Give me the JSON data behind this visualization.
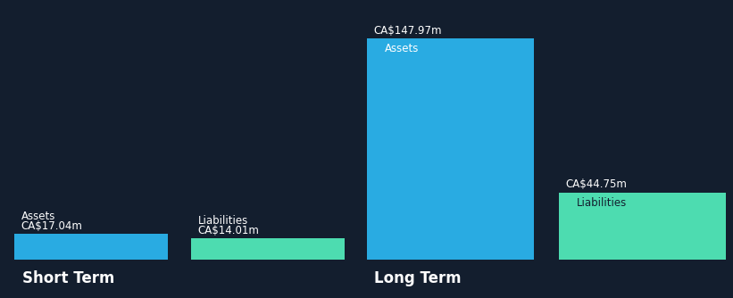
{
  "background_color": "#131e2e",
  "short_term": {
    "assets_value": 17.04,
    "liabilities_value": 14.01,
    "assets_label": "Assets",
    "liabilities_label": "Liabilities",
    "assets_amount_label": "CA$17.04m",
    "liabilities_amount_label": "CA$14.01m",
    "section_label": "Short Term"
  },
  "long_term": {
    "assets_value": 147.97,
    "liabilities_value": 44.75,
    "assets_label": "Assets",
    "liabilities_label": "Liabilities",
    "assets_amount_label": "CA$147.97m",
    "liabilities_amount_label": "CA$44.75m",
    "section_label": "Long Term"
  },
  "assets_color": "#29abe2",
  "liabilities_color": "#4ddcb0",
  "text_color": "#ffffff",
  "liabilities_text_color": "#131e2e",
  "font_size_label": 8.5,
  "font_size_value": 8.5,
  "font_size_section": 12,
  "max_value": 160
}
